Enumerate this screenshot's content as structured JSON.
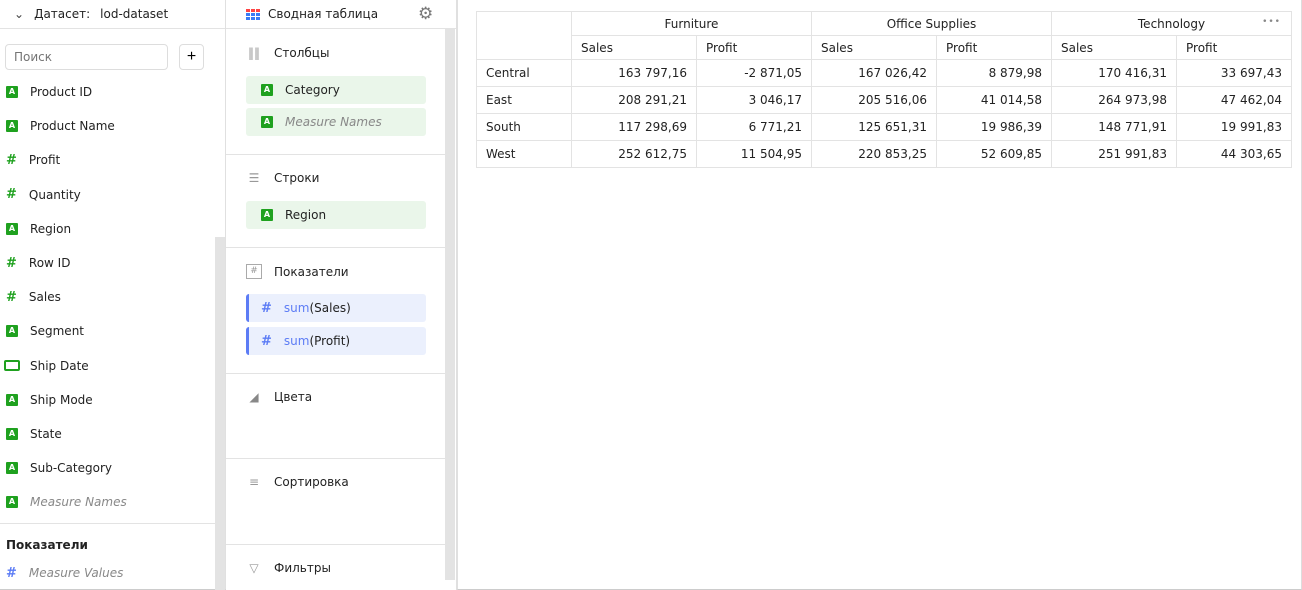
{
  "dataset": {
    "label": "Датасет:",
    "name": "lod-dataset"
  },
  "search": {
    "placeholder": "Поиск",
    "add_label": "+"
  },
  "dimensions": [
    {
      "name": "Product ID",
      "type": "string"
    },
    {
      "name": "Product Name",
      "type": "string"
    },
    {
      "name": "Profit",
      "type": "number"
    },
    {
      "name": "Quantity",
      "type": "number"
    },
    {
      "name": "Region",
      "type": "string"
    },
    {
      "name": "Row ID",
      "type": "number"
    },
    {
      "name": "Sales",
      "type": "number"
    },
    {
      "name": "Segment",
      "type": "string"
    },
    {
      "name": "Ship Date",
      "type": "date"
    },
    {
      "name": "Ship Mode",
      "type": "string"
    },
    {
      "name": "State",
      "type": "string"
    },
    {
      "name": "Sub-Category",
      "type": "string"
    },
    {
      "name": "Measure Names",
      "type": "string",
      "italic": true
    }
  ],
  "measures": {
    "title": "Показатели",
    "items": [
      {
        "name": "Measure Values"
      }
    ]
  },
  "chart_type": {
    "label": "Сводная таблица"
  },
  "sections": {
    "columns": {
      "title": "Столбцы",
      "items": [
        "Category",
        "Measure Names"
      ]
    },
    "rows": {
      "title": "Строки",
      "items": [
        "Region"
      ]
    },
    "measures": {
      "title": "Показатели",
      "items": [
        {
          "fn": "sum",
          "field": "(Sales)"
        },
        {
          "fn": "sum",
          "field": "(Profit)"
        }
      ]
    },
    "colors": {
      "title": "Цвета"
    },
    "sort": {
      "title": "Сортировка"
    },
    "filters": {
      "title": "Фильтры"
    }
  },
  "table": {
    "groups": [
      "Furniture",
      "Office Supplies",
      "Technology"
    ],
    "subheaders": [
      "Sales",
      "Profit",
      "Sales",
      "Profit",
      "Sales",
      "Profit"
    ],
    "more_label": "•••",
    "rows": [
      {
        "label": "Central",
        "values": [
          "163 797,16",
          "-2 871,05",
          "167 026,42",
          "8 879,98",
          "170 416,31",
          "33 697,43"
        ]
      },
      {
        "label": "East",
        "values": [
          "208 291,21",
          "3 046,17",
          "205 516,06",
          "41 014,58",
          "264 973,98",
          "47 462,04"
        ]
      },
      {
        "label": "South",
        "values": [
          "117 298,69",
          "6 771,21",
          "125 651,31",
          "19 986,39",
          "148 771,91",
          "19 991,83"
        ]
      },
      {
        "label": "West",
        "values": [
          "252 612,75",
          "11 504,95",
          "220 853,25",
          "52 609,85",
          "251 991,83",
          "44 303,65"
        ]
      }
    ]
  }
}
